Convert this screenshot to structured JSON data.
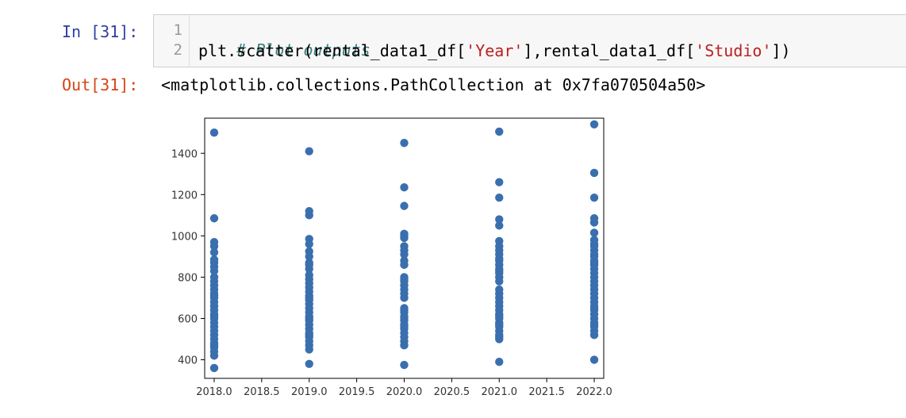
{
  "cell": {
    "in_prompt": "In [31]:",
    "out_prompt": "Out[31]:",
    "line_numbers": [
      "1",
      "2"
    ],
    "code_comment": "# Plot outputs",
    "code_line2_parts": [
      "plt.scatter(rental_data1_df[",
      "'Year'",
      "],rental_data1_df[",
      "'Studio'",
      "])"
    ],
    "output_text": "<matplotlib.collections.PathCollection at 0x7fa070504a50>"
  },
  "colors": {
    "marker": "#3a6fae",
    "prompt_in": "#303f9f",
    "prompt_out": "#d84315"
  },
  "chart_data": {
    "type": "scatter",
    "title": "",
    "xlabel": "",
    "ylabel": "",
    "xlim": [
      2017.9,
      2022.1
    ],
    "ylim": [
      310,
      1570
    ],
    "xticks": [
      2018.0,
      2018.5,
      2019.0,
      2019.5,
      2020.0,
      2020.5,
      2021.0,
      2021.5,
      2022.0
    ],
    "xtick_labels": [
      "2018.0",
      "2018.5",
      "2019.0",
      "2019.5",
      "2020.0",
      "2020.5",
      "2021.0",
      "2021.5",
      "2022.0"
    ],
    "yticks": [
      400,
      600,
      800,
      1000,
      1200,
      1400
    ],
    "ytick_labels": [
      "400",
      "600",
      "800",
      "1000",
      "1200",
      "1400"
    ],
    "grid": false,
    "series": [
      {
        "x": [
          2018,
          2018,
          2018,
          2018,
          2018,
          2018,
          2018,
          2018,
          2018,
          2018,
          2018,
          2018,
          2018,
          2018,
          2018,
          2018,
          2018,
          2018,
          2018,
          2018,
          2018,
          2018,
          2018,
          2018,
          2018,
          2018,
          2018,
          2018,
          2018,
          2018,
          2018,
          2018,
          2018
        ],
        "y": [
          1500,
          1085,
          970,
          920,
          885,
          850,
          830,
          800,
          780,
          760,
          740,
          720,
          700,
          680,
          660,
          640,
          620,
          600,
          580,
          560,
          540,
          520,
          500,
          480,
          460,
          440,
          420,
          360,
          950,
          870,
          710,
          610,
          470
        ]
      },
      {
        "x": [
          2019,
          2019,
          2019,
          2019,
          2019,
          2019,
          2019,
          2019,
          2019,
          2019,
          2019,
          2019,
          2019,
          2019,
          2019,
          2019,
          2019,
          2019,
          2019,
          2019,
          2019,
          2019,
          2019,
          2019,
          2019,
          2019,
          2019,
          2019,
          2019,
          2019,
          2019,
          2019,
          2019
        ],
        "y": [
          1410,
          1120,
          1100,
          985,
          925,
          900,
          870,
          840,
          810,
          790,
          770,
          750,
          730,
          710,
          690,
          670,
          650,
          630,
          610,
          590,
          570,
          550,
          530,
          510,
          490,
          470,
          450,
          380,
          960,
          860,
          700,
          600,
          520
        ]
      },
      {
        "x": [
          2020,
          2020,
          2020,
          2020,
          2020,
          2020,
          2020,
          2020,
          2020,
          2020,
          2020,
          2020,
          2020,
          2020,
          2020,
          2020,
          2020,
          2020,
          2020,
          2020,
          2020,
          2020,
          2020,
          2020,
          2020,
          2020,
          2020,
          2020,
          2020,
          2020,
          2020,
          2020
        ],
        "y": [
          1450,
          1235,
          1145,
          1010,
          990,
          950,
          910,
          880,
          860,
          800,
          780,
          760,
          740,
          720,
          700,
          650,
          630,
          610,
          590,
          570,
          550,
          530,
          510,
          490,
          470,
          375,
          1000,
          930,
          790,
          640,
          600,
          560
        ]
      },
      {
        "x": [
          2021,
          2021,
          2021,
          2021,
          2021,
          2021,
          2021,
          2021,
          2021,
          2021,
          2021,
          2021,
          2021,
          2021,
          2021,
          2021,
          2021,
          2021,
          2021,
          2021,
          2021,
          2021,
          2021,
          2021,
          2021,
          2021,
          2021,
          2021,
          2021,
          2021,
          2021,
          2021,
          2021,
          2021
        ],
        "y": [
          1505,
          1260,
          1185,
          1080,
          1050,
          975,
          930,
          910,
          880,
          860,
          840,
          820,
          800,
          780,
          740,
          720,
          700,
          680,
          660,
          640,
          620,
          600,
          580,
          560,
          540,
          520,
          500,
          390,
          950,
          890,
          830,
          610,
          570,
          510
        ]
      },
      {
        "x": [
          2022,
          2022,
          2022,
          2022,
          2022,
          2022,
          2022,
          2022,
          2022,
          2022,
          2022,
          2022,
          2022,
          2022,
          2022,
          2022,
          2022,
          2022,
          2022,
          2022,
          2022,
          2022,
          2022,
          2022,
          2022,
          2022,
          2022,
          2022,
          2022,
          2022,
          2022,
          2022,
          2022,
          2022,
          2022
        ],
        "y": [
          1540,
          1305,
          1185,
          1085,
          1065,
          1015,
          980,
          960,
          930,
          900,
          880,
          860,
          840,
          820,
          800,
          780,
          760,
          740,
          720,
          700,
          680,
          660,
          640,
          620,
          600,
          580,
          560,
          540,
          520,
          400,
          950,
          910,
          870,
          650,
          570
        ]
      }
    ]
  }
}
